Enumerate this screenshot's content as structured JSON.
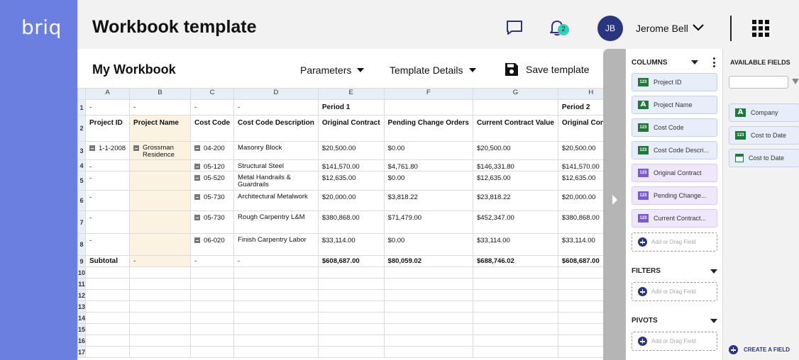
{
  "brand": {
    "logo": "briq"
  },
  "header": {
    "title": "Workbook template",
    "notification_count": "2",
    "user": {
      "initials": "JB",
      "name": "Jerome Bell"
    }
  },
  "workbook": {
    "title": "My Workbook",
    "toolbar": {
      "parameters": "Parameters",
      "template_details": "Template Details",
      "save": "Save template"
    },
    "columns": [
      "A",
      "B",
      "C",
      "D",
      "E",
      "F",
      "G",
      "H"
    ],
    "row1": [
      "-",
      "-",
      "-",
      "-",
      "Period 1",
      "",
      "",
      "Period 2"
    ],
    "row2": [
      "Project ID",
      "Project Name",
      "Cost Code",
      "Cost Code Description",
      "Original Contract",
      "Pending Change Orders",
      "Current Contract Value",
      "Original Contract"
    ],
    "rows": [
      {
        "num": "3",
        "a": "1-1-2008",
        "b": "Grossman Residence",
        "c": "04-200",
        "d": "Masonry Block",
        "e": "$20,500.00",
        "f": "$0.00",
        "g": "$20,500.00",
        "h": "$20,500.00"
      },
      {
        "num": "4",
        "a": "-",
        "b": "",
        "c": "05-120",
        "d": "Structural Steel",
        "e": "$141,570.00",
        "f": "$4,761.80",
        "g": "$146,331.80",
        "h": "$141,570.00"
      },
      {
        "num": "5",
        "a": "-",
        "b": "",
        "c": "05-520",
        "d": "Metal Handrails & Guardrails",
        "e": "$12,635.00",
        "f": "$0.00",
        "g": "$12,635.00",
        "h": "$12,635.00"
      },
      {
        "num": "6",
        "a": "-",
        "b": "",
        "c": "05-730",
        "d": "Architectural Metalwork",
        "e": "$20,000.00",
        "f": "$3,818.22",
        "g": "$23,818.22",
        "h": "$20,000.00"
      },
      {
        "num": "7",
        "a": "-",
        "b": "",
        "c": "05-730",
        "d": "Rough Carpentry L&M",
        "e": "$380,868.00",
        "f": "$71,479.00",
        "g": "$452,347.00",
        "h": "$380,868.00"
      },
      {
        "num": "8",
        "a": "-",
        "b": "",
        "c": "06-020",
        "d": "Finish Carpentry Labor",
        "e": "$33,114.00",
        "f": "$0.00",
        "g": "$33,114.00",
        "h": "$33,114.00"
      }
    ],
    "subtotal": {
      "num": "9",
      "label": "Subtotal",
      "b": "-",
      "c": "-",
      "d": "-",
      "e": "$608,687.00",
      "f": "$80,059.02",
      "g": "$688,746.02",
      "h": "$608,687.00"
    },
    "empty_rows": [
      "10",
      "11",
      "12",
      "13",
      "14",
      "15",
      "16",
      "17"
    ]
  },
  "panel": {
    "columns_label": "COLUMNS",
    "column_fields": [
      {
        "label": "Project ID",
        "type": "number"
      },
      {
        "label": "Project Name",
        "type": "text"
      },
      {
        "label": "Cost Code",
        "type": "number"
      },
      {
        "label": "Cost Code Descri...",
        "type": "number"
      },
      {
        "label": "Original Contract",
        "type": "calc"
      },
      {
        "label": "Pending Change...",
        "type": "calc"
      },
      {
        "label": "Current Contract...",
        "type": "calc"
      }
    ],
    "add_field": "Add or Drag Field",
    "filters_label": "FILTERS",
    "pivots_label": "PIVOTS"
  },
  "available": {
    "label": "AVAILABLE FIELDS",
    "search_placeholder": "",
    "fields": [
      {
        "label": "Company",
        "type": "text"
      },
      {
        "label": "Cost to Date",
        "type": "number"
      },
      {
        "label": "Cost to Date",
        "type": "date"
      }
    ],
    "create": "CREATE A FIELD"
  },
  "icons": {
    "chat": "chat-icon",
    "bell": "bell-icon",
    "apps": "apps-grid-icon",
    "save": "floppy-disk-icon"
  },
  "colors": {
    "rail": "#6b7fe0",
    "accent": "#2a3580",
    "badge": "#2fd3b4",
    "project_name_col": "#fbf2e2"
  }
}
